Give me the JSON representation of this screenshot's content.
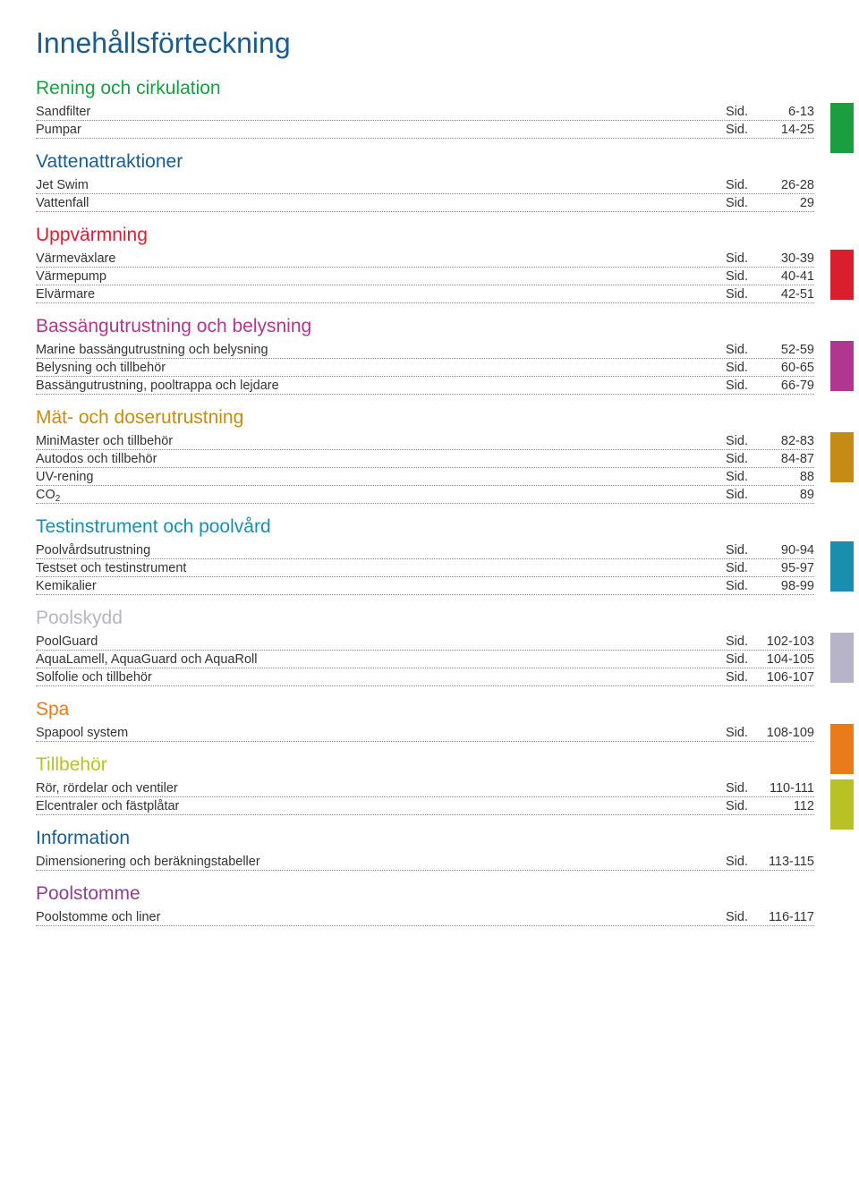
{
  "title": "Innehållsförteckning",
  "sid_label": "Sid.",
  "sections": [
    {
      "heading": "Rening och cirkulation",
      "heading_color": "#1a9e3f",
      "swatch_color": "#1a9e3f",
      "rows": [
        {
          "label": "Sandfilter",
          "page": "6-13"
        },
        {
          "label": "Pumpar",
          "page": "14-25"
        }
      ]
    },
    {
      "heading": "Vattenattraktioner",
      "heading_color": "#1a5c8f",
      "swatch_color": null,
      "rows": [
        {
          "label": "Jet Swim",
          "page": "26-28"
        },
        {
          "label": "Vattenfall",
          "page": "29"
        }
      ]
    },
    {
      "heading": "Uppvärmning",
      "heading_color": "#d91f2e",
      "swatch_color": "#d91f2e",
      "rows": [
        {
          "label": "Värmeväxlare",
          "page": "30-39"
        },
        {
          "label": "Värmepump",
          "page": "40-41"
        },
        {
          "label": "Elvärmare",
          "page": "42-51"
        }
      ]
    },
    {
      "heading": "Bassängutrustning och belysning",
      "heading_color": "#b0368f",
      "swatch_color": "#b0368f",
      "rows": [
        {
          "label": "Marine bassängutrustning och belysning",
          "page": "52-59"
        },
        {
          "label": "Belysning och tillbehör",
          "page": "60-65"
        },
        {
          "label": "Bassängutrustning, pooltrappa och lejdare",
          "page": "66-79"
        }
      ]
    },
    {
      "heading": "Mät- och doserutrustning",
      "heading_color": "#c58b15",
      "swatch_color": "#c58b15",
      "rows": [
        {
          "label": "MiniMaster och tillbehör",
          "page": "82-83"
        },
        {
          "label": "Autodos och tillbehör",
          "page": "84-87"
        },
        {
          "label": "UV-rening",
          "page": "88"
        },
        {
          "label": "CO",
          "sub": "2",
          "page": "89"
        }
      ]
    },
    {
      "heading": "Testinstrument och poolvård",
      "heading_color": "#1a8fad",
      "swatch_color": "#1a8fad",
      "rows": [
        {
          "label": "Poolvårdsutrustning",
          "page": "90-94"
        },
        {
          "label": "Testset och testinstrument",
          "page": "95-97"
        },
        {
          "label": "Kemikalier",
          "page": "98-99"
        }
      ]
    },
    {
      "heading": "Poolskydd",
      "heading_color": "#b7b3c8",
      "swatch_color": "#b7b3c8",
      "rows": [
        {
          "label": "PoolGuard",
          "page": "102-103"
        },
        {
          "label": "AquaLamell, AquaGuard och AquaRoll",
          "page": "104-105"
        },
        {
          "label": "Solfolie och tillbehör",
          "page": "106-107"
        }
      ]
    },
    {
      "heading": "Spa",
      "heading_color": "#e97b1a",
      "swatch_color": "#e97b1a",
      "rows": [
        {
          "label": "Spapool system",
          "page": "108-109"
        }
      ]
    },
    {
      "heading": "Tillbehör",
      "heading_color": "#b9c225",
      "swatch_color": "#b9c225",
      "rows": [
        {
          "label": "Rör, rördelar och ventiler",
          "page": "110-111"
        },
        {
          "label": "Elcentraler och fästplåtar",
          "page": "112"
        }
      ]
    },
    {
      "heading": "Information",
      "heading_color": "#1a5c8f",
      "swatch_color": null,
      "rows": [
        {
          "label": "Dimensionering och beräkningstabeller",
          "page": "113-115"
        }
      ]
    },
    {
      "heading": "Poolstomme",
      "heading_color": "#8f3f8f",
      "swatch_color": null,
      "rows": [
        {
          "label": "Poolstomme och liner",
          "page": "116-117"
        }
      ]
    }
  ]
}
